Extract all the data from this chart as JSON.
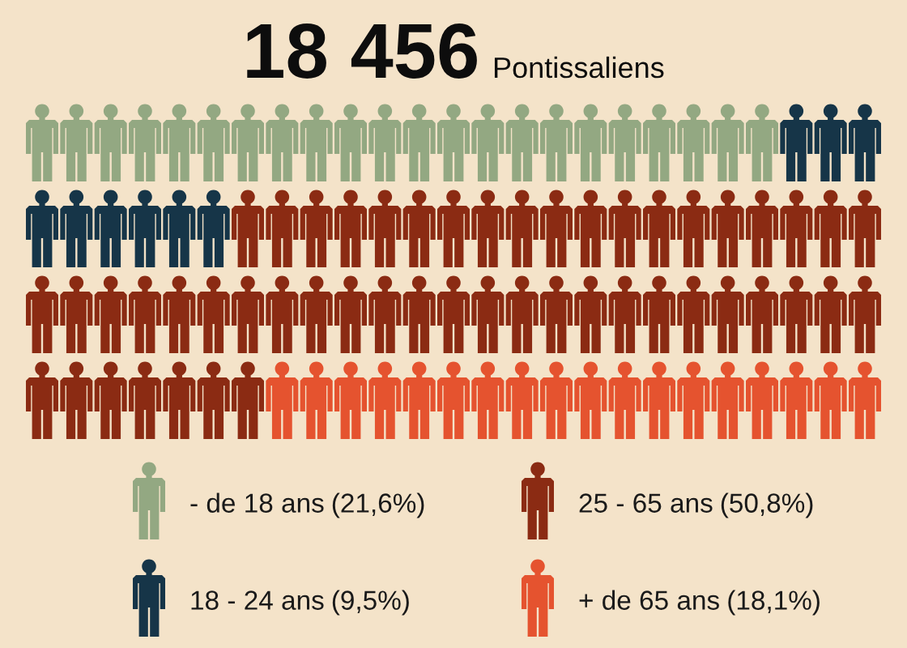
{
  "chart_data": {
    "type": "other",
    "title": "18 456",
    "subtitle": "Pontissaliens",
    "categories": [
      "- de 18 ans",
      "18 - 24 ans",
      "25 - 65 ans",
      "+ de 65 ans"
    ],
    "values": [
      21.6,
      9.5,
      50.8,
      18.1
    ],
    "value_labels": [
      "(21,6%)",
      "(9,5%)",
      "(50,8%)",
      "(18,1%)"
    ],
    "colors": [
      "#93a882",
      "#163548",
      "#8b2b13",
      "#e5532f"
    ]
  }
}
